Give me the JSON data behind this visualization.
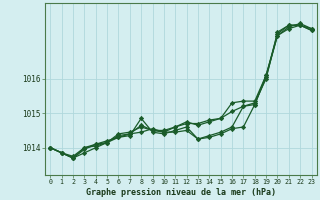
{
  "xlabel": "Graphe pression niveau de la mer (hPa)",
  "background_color": "#d4eef0",
  "grid_color": "#b0d8dc",
  "line_color": "#1a5c2a",
  "spine_color": "#4a7a4a",
  "tick_color": "#1a3a1a",
  "xlim": [
    -0.5,
    23.5
  ],
  "ylim": [
    1013.2,
    1018.2
  ],
  "yticks": [
    1014,
    1015,
    1016
  ],
  "xticks": [
    0,
    1,
    2,
    3,
    4,
    5,
    6,
    7,
    8,
    9,
    10,
    11,
    12,
    13,
    14,
    15,
    16,
    17,
    18,
    19,
    20,
    21,
    22,
    23
  ],
  "series": [
    [
      1014.0,
      1013.85,
      1013.75,
      1014.0,
      1014.1,
      1014.15,
      1014.35,
      1014.4,
      1014.45,
      1014.55,
      1014.45,
      1014.45,
      1014.5,
      1014.25,
      1014.3,
      1014.4,
      1014.55,
      1014.6,
      1015.25,
      1016.1,
      1017.25,
      1017.5,
      1017.6,
      1017.45
    ],
    [
      1014.0,
      1013.85,
      1013.7,
      1013.85,
      1014.0,
      1014.15,
      1014.3,
      1014.35,
      1014.85,
      1014.45,
      1014.4,
      1014.5,
      1014.6,
      1014.25,
      1014.35,
      1014.45,
      1014.6,
      1015.2,
      1015.25,
      1016.05,
      1017.25,
      1017.45,
      1017.55,
      1017.4
    ],
    [
      1014.0,
      1013.85,
      1013.7,
      1014.0,
      1014.05,
      1014.15,
      1014.4,
      1014.45,
      1014.6,
      1014.5,
      1014.45,
      1014.6,
      1014.75,
      1014.65,
      1014.75,
      1014.85,
      1015.3,
      1015.35,
      1015.35,
      1016.1,
      1017.3,
      1017.55,
      1017.55,
      1017.4
    ],
    [
      1014.0,
      1013.85,
      1013.7,
      1013.95,
      1014.1,
      1014.2,
      1014.3,
      1014.4,
      1014.65,
      1014.5,
      1014.5,
      1014.6,
      1014.7,
      1014.7,
      1014.8,
      1014.85,
      1015.05,
      1015.2,
      1015.3,
      1016.0,
      1017.35,
      1017.55,
      1017.55,
      1017.45
    ]
  ]
}
